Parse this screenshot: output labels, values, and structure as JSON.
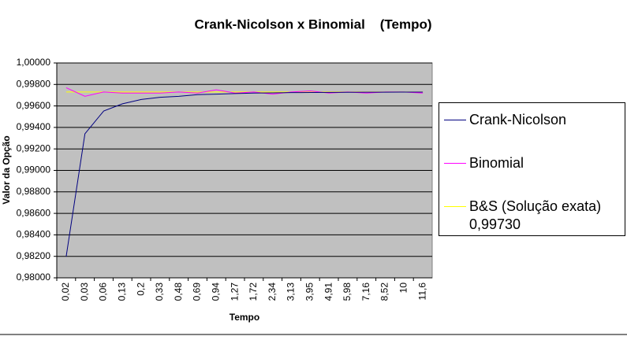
{
  "chart_data": {
    "type": "line",
    "title": "Crank-Nicolson x Binomial    (Tempo)",
    "x_label": "Tempo",
    "y_label": "Valor da Opção",
    "categories": [
      "0,02",
      "0,03",
      "0,06",
      "0,13",
      "0,2",
      "0,33",
      "0,48",
      "0,69",
      "0,94",
      "1,27",
      "1,72",
      "2,34",
      "3,13",
      "3,95",
      "4,91",
      "5,98",
      "7,16",
      "8,52",
      "10",
      "11,6"
    ],
    "series": [
      {
        "name": "Crank-Nicolson",
        "color": "#000080",
        "values": [
          0.98198,
          0.99341,
          0.99553,
          0.9962,
          0.9966,
          0.9968,
          0.9969,
          0.99705,
          0.9971,
          0.99715,
          0.9972,
          0.99722,
          0.99724,
          0.99725,
          0.99726,
          0.99727,
          0.99728,
          0.99728,
          0.99729,
          0.99729
        ]
      },
      {
        "name": "Binomial",
        "color": "#ff00ff",
        "values": [
          0.9977,
          0.9969,
          0.9973,
          0.9972,
          0.9972,
          0.9972,
          0.9973,
          0.9972,
          0.9975,
          0.9972,
          0.9973,
          0.9971,
          0.9973,
          0.9974,
          0.9972,
          0.9973,
          0.9972,
          0.9973,
          0.9973,
          0.9972
        ]
      },
      {
        "name": "B&S (Solução exata) 0,99730",
        "color": "#ffff00",
        "values": [
          0.9973,
          0.9973,
          0.9973,
          0.9973,
          0.9973,
          0.9973,
          0.9973,
          0.9973,
          0.9973,
          0.9973,
          0.9973,
          0.9973,
          0.9973,
          0.9973,
          0.9973,
          0.9973,
          0.9973,
          0.9973,
          0.9973,
          0.9973
        ]
      }
    ],
    "ylim": [
      0.98,
      1.0
    ],
    "yticks": [
      {
        "value": 0.98,
        "label": "0,98000"
      },
      {
        "value": 0.982,
        "label": "0,98200"
      },
      {
        "value": 0.984,
        "label": "0,98400"
      },
      {
        "value": 0.986,
        "label": "0,98600"
      },
      {
        "value": 0.988,
        "label": "0,98800"
      },
      {
        "value": 0.99,
        "label": "0,99000"
      },
      {
        "value": 0.992,
        "label": "0,99200"
      },
      {
        "value": 0.994,
        "label": "0,99400"
      },
      {
        "value": 0.996,
        "label": "0,99600"
      },
      {
        "value": 0.998,
        "label": "0,99800"
      },
      {
        "value": 1.0,
        "label": "1,00000"
      }
    ],
    "grid": true,
    "plot_background": "#c0c0c0",
    "legend": "right"
  }
}
